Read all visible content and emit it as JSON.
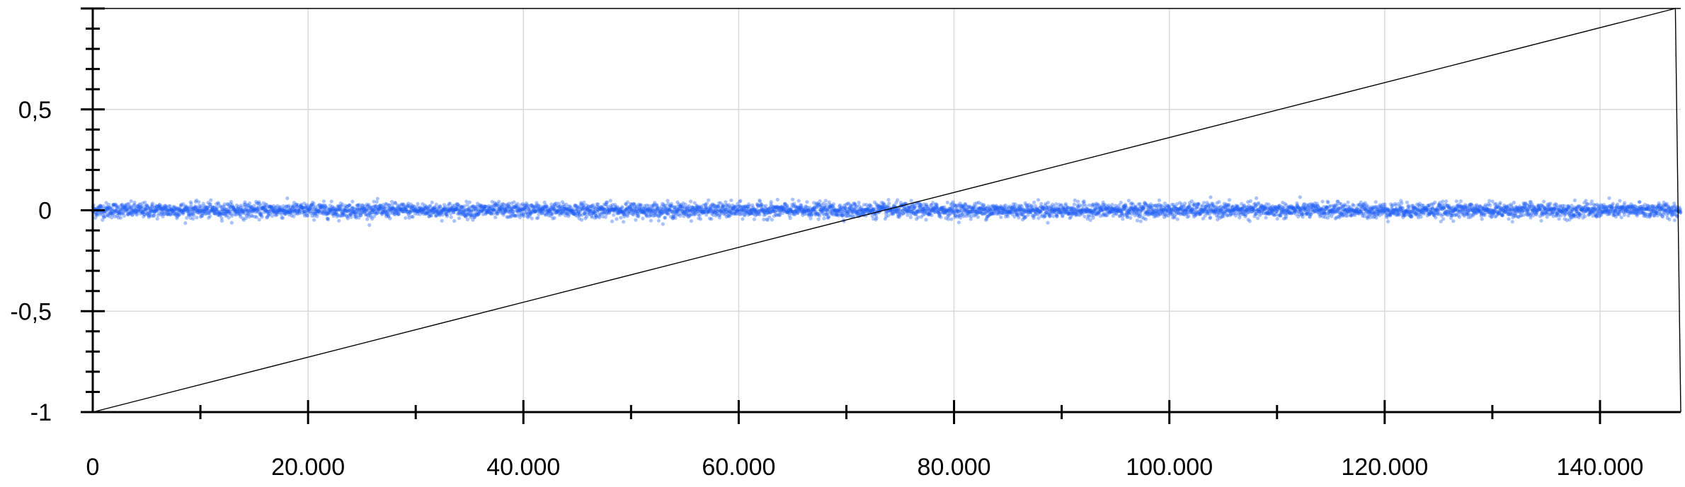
{
  "chart_data": {
    "type": "scatter",
    "title": "",
    "xlabel": "",
    "ylabel": "",
    "xlim": [
      0,
      147500
    ],
    "ylim": [
      -1,
      1
    ],
    "grid": true,
    "legend": "none",
    "x_ticks": [
      {
        "value": 0,
        "label": "0"
      },
      {
        "value": 20000,
        "label": "20.000"
      },
      {
        "value": 40000,
        "label": "40.000"
      },
      {
        "value": 60000,
        "label": "60.000"
      },
      {
        "value": 80000,
        "label": "80.000"
      },
      {
        "value": 100000,
        "label": "100.000"
      },
      {
        "value": 120000,
        "label": "120.000"
      },
      {
        "value": 140000,
        "label": "140.000"
      }
    ],
    "y_ticks": [
      {
        "value": 0.5,
        "label": "0,5"
      },
      {
        "value": 0,
        "label": "0"
      },
      {
        "value": -0.5,
        "label": "-0,5"
      },
      {
        "value": -1,
        "label": "-1"
      }
    ],
    "series": [
      {
        "type": "scatter",
        "color": "#1f5ef5",
        "x_range": [
          0,
          147500
        ],
        "y_center": 0,
        "y_spread": 0.04,
        "point_count": 6000
      },
      {
        "type": "line",
        "color": "#000000",
        "x": [
          0,
          147000,
          147500
        ],
        "y": [
          -1,
          1,
          -1
        ]
      }
    ],
    "colors": {
      "grid": "#d9d9d9",
      "axis": "#000000",
      "points": "#1f5ef5",
      "line": "#000000"
    }
  }
}
